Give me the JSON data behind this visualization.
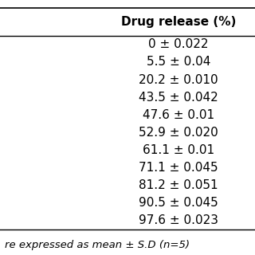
{
  "header": "Drug release (%)",
  "rows": [
    "0 ± 0.022",
    "5.5 ± 0.04",
    "20.2 ± 0.010",
    "43.5 ± 0.042",
    "47.6 ± 0.01",
    "52.9 ± 0.020",
    "61.1 ± 0.01",
    "71.1 ± 0.045",
    "81.2 ± 0.051",
    "90.5 ± 0.045",
    "97.6 ± 0.023"
  ],
  "footnote": "re expressed as mean ± S.D (n=5)",
  "bg_color": "#ffffff",
  "header_fontsize": 11,
  "row_fontsize": 11,
  "footnote_fontsize": 9.5,
  "line_color": "#000000"
}
